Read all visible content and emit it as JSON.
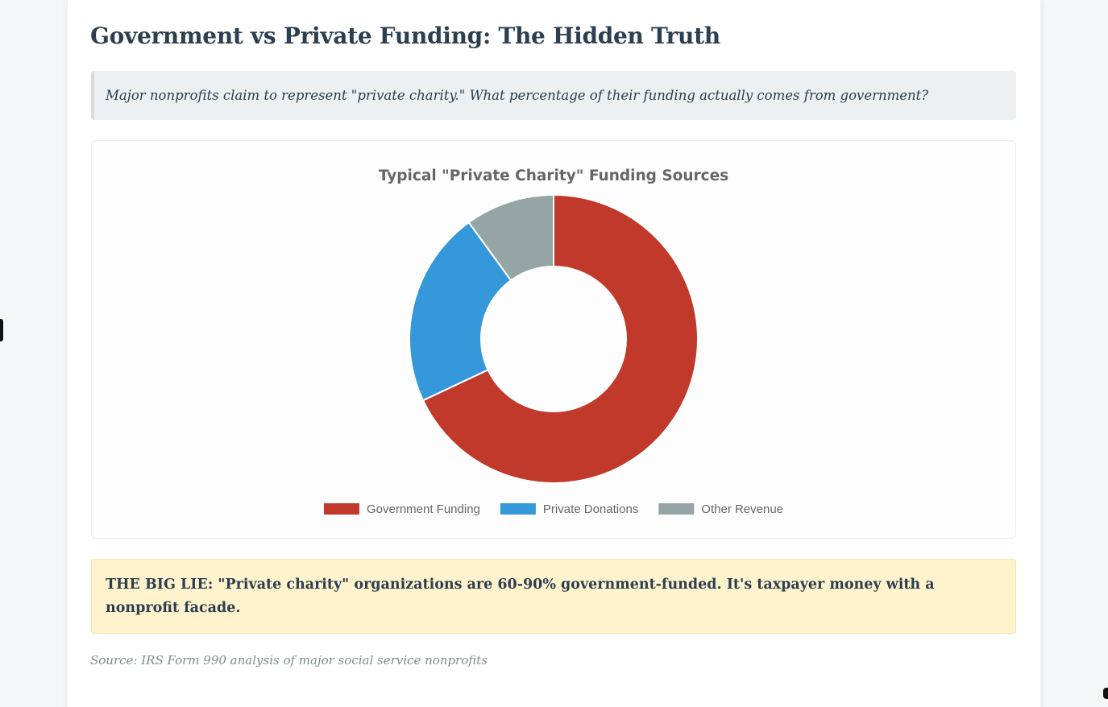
{
  "page": {
    "title": "Government vs Private Funding: The Hidden Truth",
    "intro": "Major nonprofits claim to represent \"private charity.\" What percentage of their funding actually comes from government?",
    "callout": "THE BIG LIE: \"Private charity\" organizations are 60-90% government-funded. It's taxpayer money with a nonprofit facade.",
    "source": "Source: IRS Form 990 analysis of major social service nonprofits"
  },
  "chart_data": {
    "type": "pie",
    "variant": "doughnut",
    "title": "Typical \"Private Charity\" Funding Sources",
    "categories": [
      "Government Funding",
      "Private Donations",
      "Other Revenue"
    ],
    "values": [
      68,
      22,
      10
    ],
    "colors": [
      "#c0392b",
      "#3498db",
      "#95a5a6"
    ],
    "legend": "bottom"
  }
}
